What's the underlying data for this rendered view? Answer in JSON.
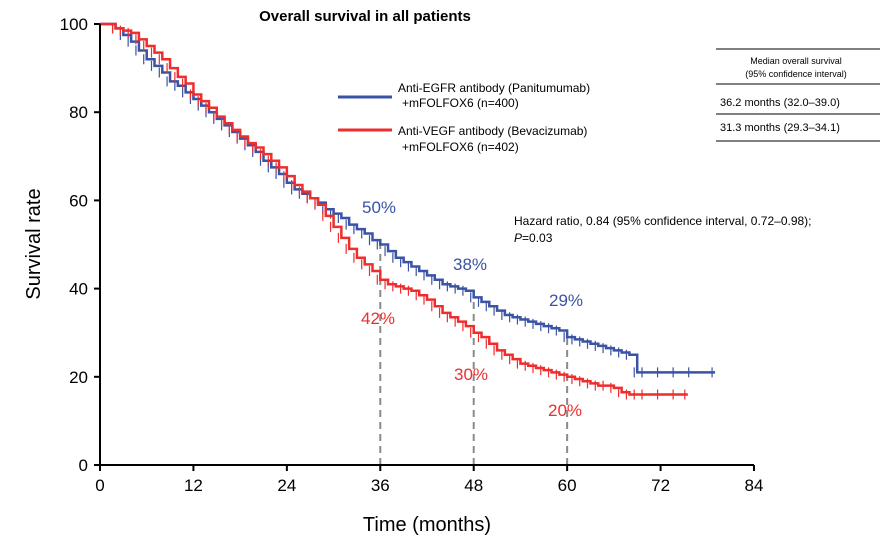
{
  "chart_data": {
    "type": "line",
    "title": "Overall survival in all patients",
    "xlabel": "Time (months)",
    "ylabel": "Survival rate",
    "xlim": [
      0,
      84
    ],
    "ylim": [
      0,
      100
    ],
    "x_ticks": [
      "0",
      "12",
      "24",
      "36",
      "48",
      "60",
      "72",
      "84"
    ],
    "y_ticks": [
      "0",
      "20",
      "40",
      "60",
      "80",
      "100"
    ],
    "grid": false,
    "legend_position": "top-center",
    "series": [
      {
        "name_line1": "Anti-EGFR antibody (Panitumumab)",
        "name_line2": "+mFOLFOX6 (n=400)",
        "color": "#3a53a4",
        "x": [
          0,
          2,
          3,
          4,
          5,
          6,
          7,
          8,
          9,
          10,
          11,
          12,
          13,
          14,
          15,
          16,
          17,
          18,
          19,
          20,
          21,
          22,
          23,
          24,
          25,
          26,
          27,
          28,
          29,
          30,
          31,
          32,
          33,
          34,
          35,
          36,
          37,
          38,
          39,
          40,
          41,
          42,
          43,
          44,
          45,
          46,
          47,
          48,
          49,
          50,
          51,
          52,
          53,
          54,
          55,
          56,
          57,
          58,
          59,
          60,
          61,
          62,
          63,
          64,
          65,
          66,
          67,
          68,
          69,
          70,
          72,
          74,
          76,
          79
        ],
        "y": [
          100,
          99,
          97.5,
          96,
          94,
          92,
          90.5,
          89,
          87,
          86,
          84.5,
          83,
          81.5,
          80,
          78.5,
          77,
          75.5,
          74,
          72.5,
          71,
          69,
          67.5,
          66,
          64,
          62.5,
          61.5,
          60.5,
          59.5,
          58,
          57,
          56,
          54.5,
          53.5,
          52.5,
          51,
          50,
          48.5,
          47,
          46,
          45,
          44,
          43,
          42,
          41,
          40.5,
          40,
          39.5,
          38,
          37,
          36,
          35,
          34,
          33.5,
          33,
          32.5,
          32,
          31.5,
          31,
          30.5,
          29,
          28.5,
          28,
          27.5,
          27,
          26.5,
          26,
          25.5,
          25,
          21,
          21,
          21,
          21,
          21,
          21
        ]
      },
      {
        "name_line1": "Anti-VEGF antibody (Bevacizumab)",
        "name_line2": "+mFOLFOX6 (n=402)",
        "color": "#ee2d2d",
        "x": [
          0,
          2,
          3,
          4,
          5,
          6,
          7,
          8,
          9,
          10,
          11,
          12,
          13,
          14,
          15,
          16,
          17,
          18,
          19,
          20,
          21,
          22,
          23,
          24,
          25,
          26,
          27,
          28,
          29,
          30,
          31,
          32,
          33,
          34,
          35,
          36,
          37,
          38,
          39,
          40,
          41,
          42,
          43,
          44,
          45,
          46,
          47,
          48,
          49,
          50,
          51,
          52,
          53,
          54,
          55,
          56,
          57,
          58,
          59,
          60,
          61,
          62,
          63,
          64,
          65,
          66,
          67,
          68,
          69,
          70,
          72,
          74,
          75.5
        ],
        "y": [
          100,
          99,
          98.5,
          98,
          96.5,
          95,
          93.5,
          92,
          90,
          88,
          86.5,
          84,
          82.5,
          81,
          79,
          77.5,
          76,
          74.5,
          73,
          72,
          70.5,
          69,
          67.5,
          65.5,
          63.5,
          62,
          60.5,
          59,
          56.5,
          54,
          51.5,
          49,
          47,
          45.5,
          44,
          42,
          41,
          40.5,
          40,
          39.5,
          38.5,
          37.5,
          36,
          34.5,
          33.5,
          32.5,
          31.5,
          30,
          29,
          27.5,
          26,
          25,
          24,
          23,
          22.5,
          22,
          21.5,
          21,
          20.5,
          20,
          19.5,
          19,
          18.5,
          18,
          18,
          17.5,
          16.5,
          16,
          16,
          16,
          16,
          16,
          16
        ]
      }
    ],
    "markers": [
      {
        "x": 36,
        "label_top": "50%",
        "label_bottom": "42%"
      },
      {
        "x": 48,
        "label_top": "38%",
        "label_bottom": "30%"
      },
      {
        "x": 60,
        "label_top": "29%",
        "label_bottom": "20%"
      }
    ],
    "median_table": {
      "header_line1": "Median overall survival",
      "header_line2": "(95% confidence interval)",
      "rows": [
        "36.2 months (32.0–39.0)",
        "31.3 months (29.3–34.1)"
      ]
    },
    "hazard_ratio_line1": "Hazard ratio, 0.84 (95% confidence interval, 0.72–0.98);",
    "hazard_ratio_p_italic": "P",
    "hazard_ratio_p_rest": "=0.03"
  }
}
